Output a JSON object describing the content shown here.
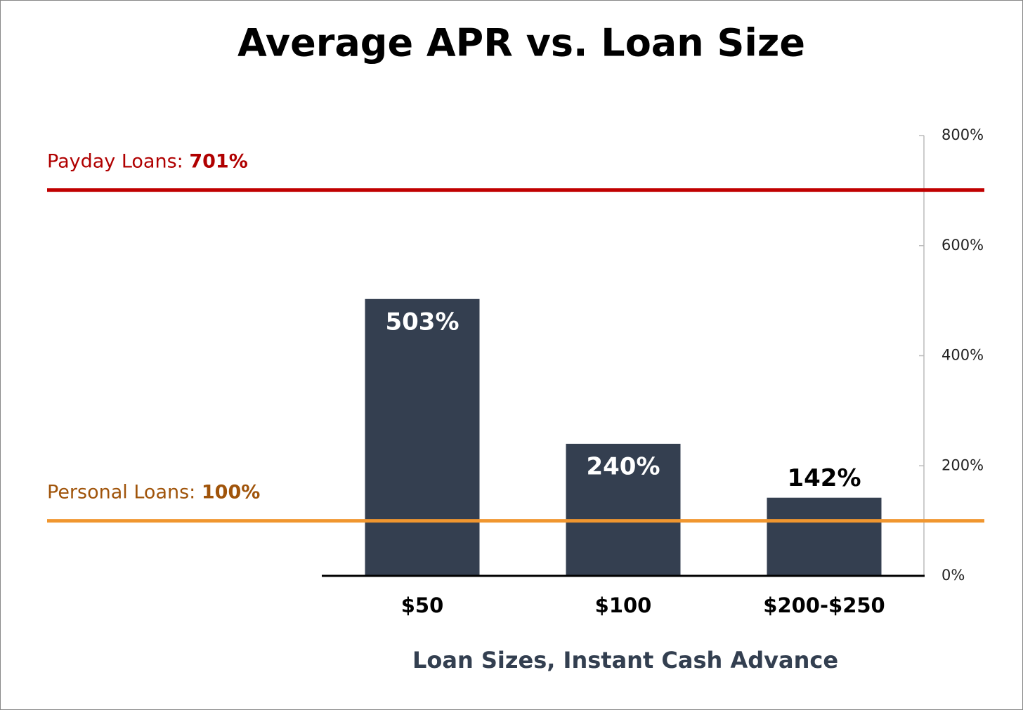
{
  "chart_data": {
    "type": "bar",
    "title": "Average APR vs. Loan Size",
    "categories": [
      "$50",
      "$100",
      "$200-$250"
    ],
    "values": [
      503,
      240,
      142
    ],
    "value_labels": [
      "503%",
      "240%",
      "142%"
    ],
    "color": "#343f50",
    "xlabel": "Loan Sizes, Instant Cash Advance",
    "ylim": [
      0,
      800
    ],
    "yticks": [
      {
        "value": 0,
        "label": "0%"
      },
      {
        "value": 200,
        "label": "200%"
      },
      {
        "value": 400,
        "label": "400%"
      },
      {
        "value": 600,
        "label": "600%"
      },
      {
        "value": 800,
        "label": "800%"
      }
    ],
    "reference_lines": [
      {
        "name": "Payday Loans:",
        "value": 701,
        "value_label": "701%",
        "color": "#c00000",
        "text_color": "#b00000"
      },
      {
        "name": "Personal Loans:",
        "value": 100,
        "value_label": "100%",
        "color": "#f0962f",
        "text_color": "#a0540a"
      }
    ]
  }
}
